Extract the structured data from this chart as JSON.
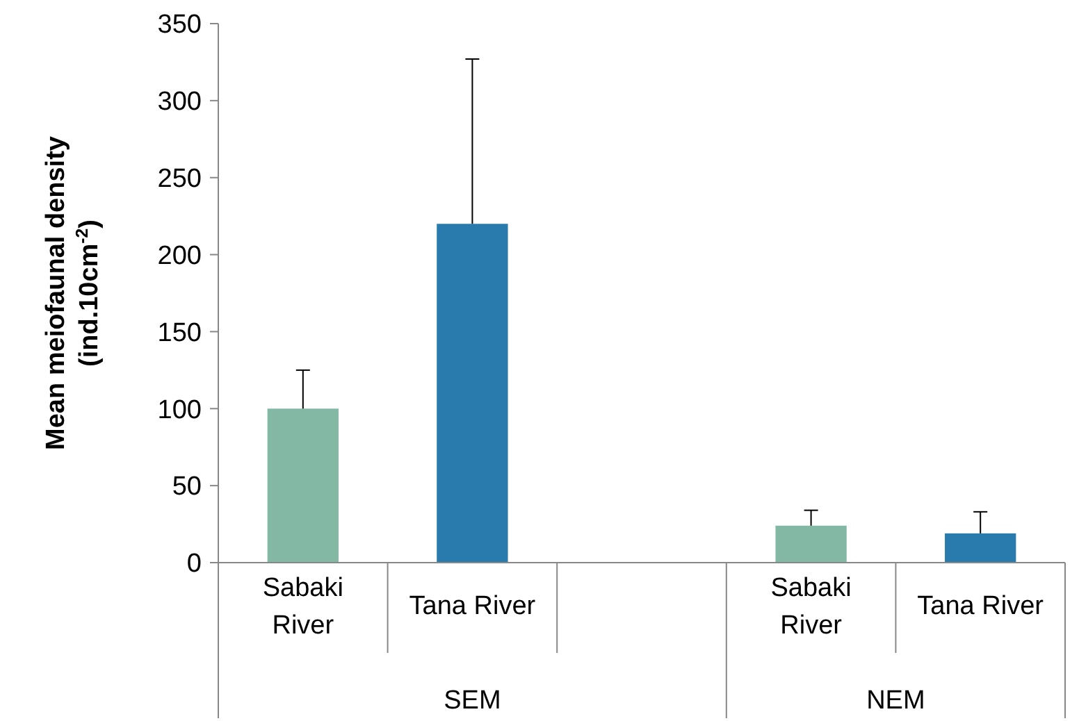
{
  "chart_data": {
    "type": "bar",
    "ylabel": "Mean meiofaunal density (ind.10cm$^{-2}$)",
    "categories": [
      "Sabaki River",
      "Tana River",
      null,
      "Sabaki River",
      "Tana River"
    ],
    "values": [
      100,
      220,
      null,
      24,
      19
    ],
    "errors": [
      25,
      107,
      null,
      10,
      14
    ],
    "colors": [
      "#82b8a4",
      "#2a7bad",
      null,
      "#82b8a4",
      "#2a7bad"
    ],
    "ylim": [
      0,
      350
    ],
    "yticks": [
      0,
      50,
      100,
      150,
      200,
      250,
      300,
      350
    ],
    "annotations": [
      "SEM",
      "NEM"
    ],
    "grid": false
  }
}
